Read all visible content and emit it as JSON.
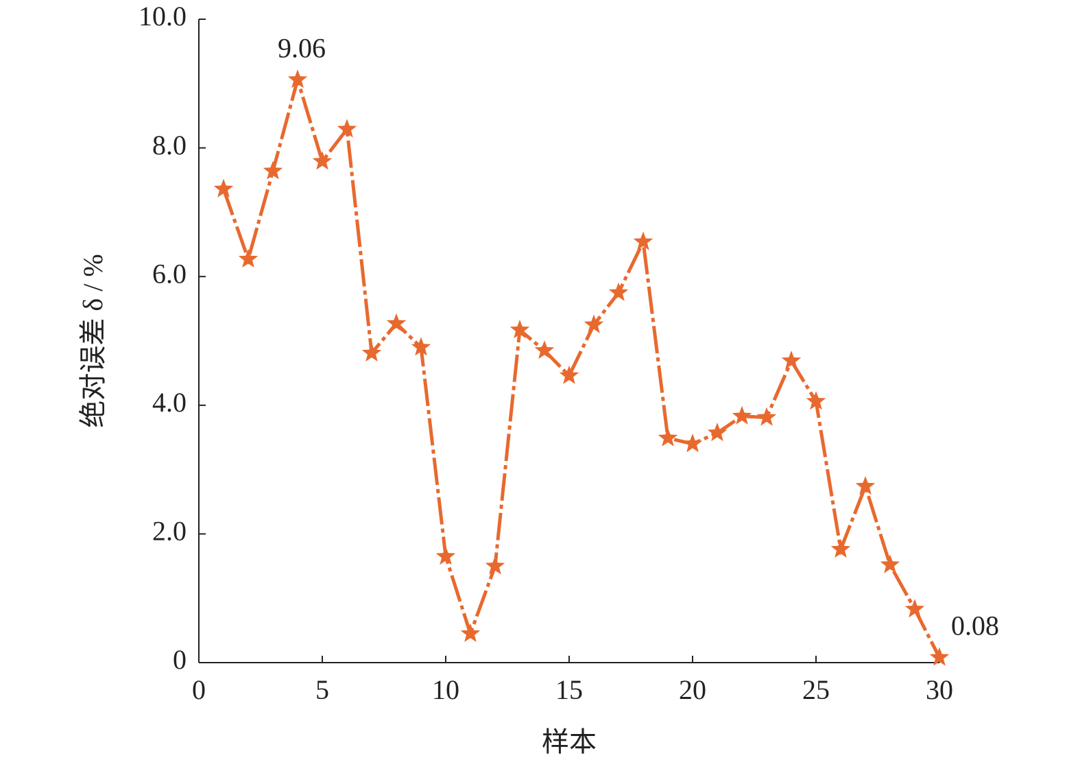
{
  "chart_data": {
    "type": "line",
    "x_label": "样本",
    "y_label": "绝对误差 δ / %",
    "x": [
      1,
      2,
      3,
      4,
      5,
      6,
      7,
      8,
      9,
      10,
      11,
      12,
      13,
      14,
      15,
      16,
      17,
      18,
      19,
      20,
      21,
      22,
      23,
      24,
      25,
      26,
      27,
      28,
      29,
      30
    ],
    "series": [
      {
        "name": "绝对误差",
        "color": "#e8692e",
        "values": [
          7.36,
          6.27,
          7.64,
          9.06,
          7.79,
          8.29,
          4.81,
          5.27,
          4.9,
          1.65,
          0.45,
          1.5,
          5.17,
          4.85,
          4.46,
          5.25,
          5.75,
          6.54,
          3.49,
          3.4,
          3.57,
          3.83,
          3.81,
          4.69,
          4.06,
          1.76,
          2.74,
          1.52,
          0.83,
          0.08
        ],
        "value_labels": [
          null,
          null,
          null,
          "9.06",
          null,
          null,
          null,
          null,
          null,
          null,
          null,
          null,
          null,
          null,
          null,
          null,
          null,
          null,
          null,
          null,
          null,
          null,
          null,
          null,
          null,
          null,
          null,
          null,
          null,
          "0.08"
        ]
      }
    ],
    "xlim": [
      0,
      30
    ],
    "xticks": [
      0,
      5,
      10,
      15,
      20,
      25,
      30
    ],
    "ylim": [
      0,
      10
    ],
    "yticks": [
      0,
      {
        "value": 2,
        "label": "2.0"
      },
      {
        "value": 4,
        "label": "4.0"
      },
      {
        "value": 6,
        "label": "6.0"
      },
      {
        "value": 8,
        "label": "8.0"
      },
      {
        "value": 10,
        "label": "10.0"
      }
    ],
    "grid": false
  }
}
